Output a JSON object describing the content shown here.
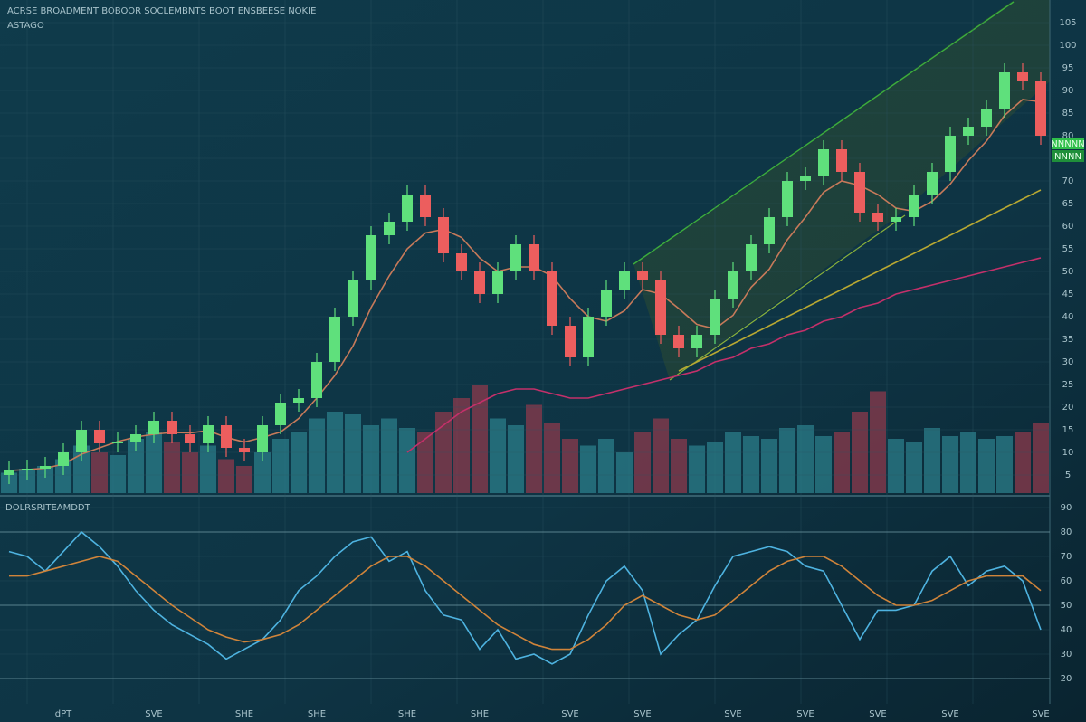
{
  "header": {
    "title": "ACRSE BROADMENT BOBOOR SOCLEMBNTS BOOT ENSBEESE NOKIE",
    "subtitle": "ASTAGO",
    "badges": [
      "NNNNN",
      "NNNN"
    ]
  },
  "chart_data": [
    {
      "type": "candlestick",
      "up_color": "#5fe07c",
      "down_color": "#ec5e5e",
      "categories": [
        null,
        null,
        null,
        "dPT",
        null,
        null,
        null,
        null,
        "SVE",
        null,
        null,
        null,
        null,
        "SHE",
        null,
        null,
        null,
        "SHE",
        null,
        null,
        null,
        null,
        "SHE",
        null,
        null,
        null,
        "SHE",
        null,
        null,
        null,
        null,
        "SVE",
        null,
        null,
        null,
        "SVE",
        null,
        null,
        null,
        null,
        "SVE",
        null,
        null,
        null,
        "SVE",
        null,
        null,
        null,
        "SVE",
        null,
        null,
        null,
        "SVE",
        null,
        null,
        null,
        null,
        "SVE"
      ],
      "open": [
        5,
        6,
        6.4,
        7,
        10,
        15,
        12,
        12.4,
        14,
        17,
        14,
        12,
        16,
        11,
        10,
        16,
        21,
        22,
        30,
        40,
        48,
        58,
        61,
        67,
        62,
        54,
        50,
        45,
        50,
        56,
        50,
        38,
        31,
        40,
        46,
        50,
        48,
        36,
        33,
        36,
        44,
        50,
        56,
        62,
        70,
        71,
        77,
        72,
        63,
        61,
        62,
        67,
        72,
        80,
        82,
        86,
        94,
        92
      ],
      "high": [
        8,
        8.4,
        9,
        12,
        17,
        17,
        14.4,
        16,
        19,
        19,
        16,
        18,
        18,
        13,
        18,
        23,
        24,
        32,
        42,
        50,
        60,
        63,
        69,
        69,
        64,
        56,
        52,
        52,
        58,
        58,
        52,
        40,
        42,
        48,
        52,
        52,
        50,
        38,
        38,
        46,
        52,
        58,
        64,
        72,
        73,
        79,
        79,
        74,
        65,
        64,
        69,
        74,
        82,
        84,
        88,
        96,
        96,
        94
      ],
      "low": [
        3,
        4,
        4.4,
        5,
        8,
        10,
        10,
        10.4,
        12,
        12,
        10,
        10,
        9,
        8,
        8,
        14,
        19,
        20,
        28,
        38,
        46,
        56,
        59,
        60,
        52,
        48,
        43,
        43,
        48,
        48,
        36,
        29,
        29,
        38,
        44,
        46,
        34,
        31,
        31,
        34,
        42,
        48,
        54,
        60,
        68,
        69,
        70,
        61,
        59,
        59,
        60,
        65,
        70,
        78,
        80,
        84,
        90,
        78
      ],
      "close": [
        6,
        6.4,
        7,
        10,
        15,
        12,
        12.4,
        14,
        17,
        14,
        12,
        16,
        11,
        10,
        16,
        21,
        22,
        30,
        40,
        48,
        58,
        61,
        67,
        62,
        54,
        50,
        45,
        50,
        56,
        50,
        38,
        31,
        40,
        46,
        50,
        48,
        36,
        33,
        36,
        44,
        50,
        56,
        62,
        70,
        71,
        77,
        72,
        63,
        61,
        62,
        67,
        72,
        80,
        82,
        86,
        94,
        92,
        80
      ],
      "series": [
        {
          "color": "#c77a5a",
          "values": [
            6,
            6.2,
            6.5,
            7.4,
            9.6,
            11,
            12.4,
            13.4,
            14,
            14.4,
            14.3,
            14.8,
            13.3,
            12.3,
            13.3,
            14.5,
            17.5,
            22,
            27,
            33.5,
            42,
            49,
            55,
            58.5,
            59.3,
            57.5,
            53,
            50,
            51,
            51,
            49,
            44,
            40,
            39,
            41.3,
            46,
            45,
            41.8,
            38.3,
            37.3,
            40.3,
            46.5,
            50.5,
            57,
            62,
            67.5,
            70,
            69,
            67,
            64,
            63.3,
            65.5,
            69.3,
            74.5,
            78.8,
            84.5,
            88,
            87.5
          ]
        },
        {
          "color": "#c4306a",
          "values": [
            null,
            null,
            null,
            null,
            null,
            null,
            null,
            null,
            null,
            null,
            null,
            null,
            null,
            null,
            null,
            null,
            null,
            null,
            null,
            null,
            null,
            null,
            10,
            13,
            16,
            19,
            21,
            23,
            24,
            24,
            23,
            22,
            22,
            23,
            24,
            25,
            26,
            27,
            28,
            30,
            31,
            33,
            34,
            36,
            37,
            39,
            40,
            42,
            43,
            45,
            46,
            47,
            48,
            49,
            50,
            51,
            52,
            53
          ]
        },
        {
          "color": "#b8a832",
          "values": [
            null,
            null,
            null,
            null,
            null,
            null,
            null,
            null,
            null,
            null,
            null,
            null,
            null,
            null,
            null,
            null,
            null,
            null,
            null,
            null,
            null,
            null,
            null,
            null,
            null,
            null,
            null,
            null,
            null,
            null,
            null,
            null,
            null,
            null,
            null,
            null,
            null,
            28,
            30,
            32,
            34,
            36,
            38,
            40,
            42,
            44,
            46,
            48,
            50,
            52,
            54,
            56,
            58,
            60,
            62,
            64,
            66,
            68
          ]
        }
      ],
      "ylim": [
        0,
        110
      ],
      "yticks": [
        5,
        10,
        15,
        20,
        25,
        30,
        35,
        40,
        45,
        50,
        55,
        60,
        65,
        70,
        75,
        80,
        85,
        90,
        95,
        100,
        105
      ]
    },
    {
      "type": "bar",
      "up_color": "#2b7d8a",
      "down_color": "#8c3a4c",
      "values": [
        15,
        18,
        20,
        25,
        35,
        30,
        28,
        40,
        45,
        38,
        30,
        35,
        25,
        20,
        30,
        40,
        45,
        55,
        60,
        58,
        50,
        55,
        48,
        45,
        60,
        70,
        80,
        55,
        50,
        65,
        52,
        40,
        35,
        40,
        30,
        45,
        55,
        40,
        35,
        38,
        45,
        42,
        40,
        48,
        50,
        42,
        45,
        60,
        75,
        40,
        38,
        48,
        42,
        45,
        40,
        42,
        45,
        52
      ],
      "ylim": [
        0,
        100
      ]
    },
    {
      "type": "line",
      "title": "DOLRSRITEAMDDT",
      "series": [
        {
          "color": "#4eb3e0",
          "values": [
            72,
            70,
            64,
            72,
            80,
            74,
            66,
            56,
            48,
            42,
            38,
            34,
            28,
            32,
            36,
            44,
            56,
            62,
            70,
            76,
            78,
            68,
            72,
            56,
            46,
            44,
            32,
            40,
            28,
            30,
            26,
            30,
            46,
            60,
            66,
            56,
            30,
            38,
            44,
            58,
            70,
            72,
            74,
            72,
            66,
            64,
            50,
            36,
            48,
            48,
            50,
            64,
            70,
            58,
            64,
            66,
            60,
            40
          ]
        },
        {
          "color": "#d0843a",
          "values": [
            62,
            62,
            64,
            66,
            68,
            70,
            68,
            62,
            56,
            50,
            45,
            40,
            37,
            35,
            36,
            38,
            42,
            48,
            54,
            60,
            66,
            70,
            70,
            66,
            60,
            54,
            48,
            42,
            38,
            34,
            32,
            32,
            36,
            42,
            50,
            54,
            50,
            46,
            44,
            46,
            52,
            58,
            64,
            68,
            70,
            70,
            66,
            60,
            54,
            50,
            50,
            52,
            56,
            60,
            62,
            62,
            62,
            56
          ]
        }
      ],
      "ylim": [
        10,
        90
      ],
      "yticks": [
        20,
        30,
        40,
        50,
        60,
        70,
        80,
        90
      ],
      "levels": [
        20,
        50,
        80
      ]
    }
  ]
}
